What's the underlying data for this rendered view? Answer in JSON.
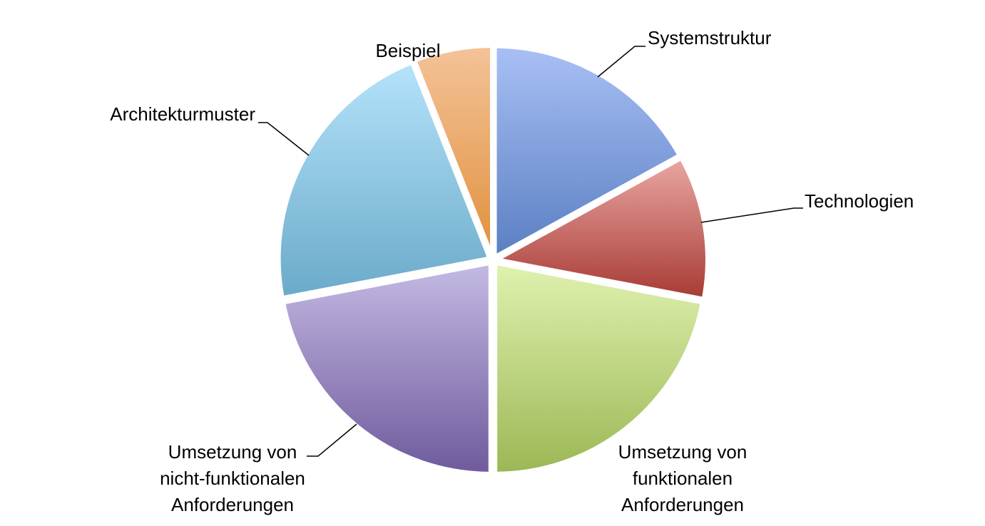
{
  "chart_data": {
    "type": "pie",
    "title": "",
    "start_angle_deg": 0,
    "direction": "clockwise",
    "slices": [
      {
        "label": "Systemstruktur",
        "value": 17,
        "color_top": "#a9c0f5",
        "color_bottom": "#5a7fc2"
      },
      {
        "label": "Technologien",
        "value": 11,
        "color_top": "#eaa7a3",
        "color_bottom": "#a73a34"
      },
      {
        "label": "Umsetzung von funktionalen Anforderungen",
        "value": 22,
        "color_top": "#e0f2b0",
        "color_bottom": "#9bb754"
      },
      {
        "label": "Umsetzung von nicht-funktionalen Anforderungen",
        "value": 22,
        "color_top": "#c5bae4",
        "color_bottom": "#6e5a9c"
      },
      {
        "label": "Architekturmuster",
        "value": 22,
        "color_top": "#b5e3fb",
        "color_bottom": "#6aaac9"
      },
      {
        "label": "Beispiel",
        "value": 6,
        "color_top": "#f4c399",
        "color_bottom": "#e0903c"
      }
    ],
    "label_lines": [
      [
        "Systemstruktur"
      ],
      [
        "Technologien"
      ],
      [
        "Umsetzung von",
        "funktionalen",
        "Anforderungen"
      ],
      [
        "Umsetzung von",
        "nicht-funktionalen",
        "Anforderungen"
      ],
      [
        "Architekturmuster"
      ],
      [
        "Beispiel"
      ]
    ],
    "legend": "none"
  }
}
